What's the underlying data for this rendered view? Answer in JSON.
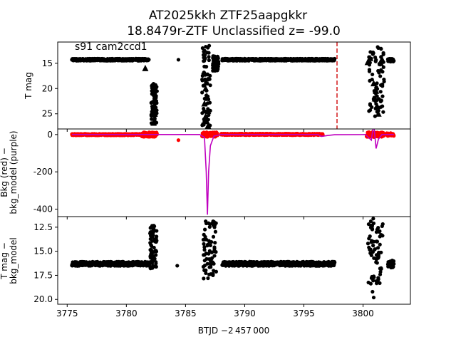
{
  "figure": {
    "title_line1": "AT2025kkh  ZTF25aapgkkr",
    "title_line2": "18.8479r-ZTF Unclassified z= -99.0",
    "xlabel": "BTJD −2 457 000",
    "x_ticks": [
      3775,
      3780,
      3785,
      3790,
      3795,
      3800
    ],
    "xlim": [
      3774.2,
      3804.0
    ]
  },
  "chart_data": [
    {
      "type": "scatter",
      "panel": "top",
      "ylabel": "T mag",
      "ylim": [
        28.0,
        10.8
      ],
      "inverted_y": true,
      "y_ticks": [
        15,
        20,
        25
      ],
      "annotation": "s91 cam2ccd1",
      "vline_x": 3797.8,
      "vline_color": "#d62728",
      "point_color": "#000000",
      "segments": [
        {
          "x_start": 3775.4,
          "x_end": 3781.9,
          "y_center": 14.3,
          "y_spread": 0.2
        },
        {
          "x_start": 3788.1,
          "x_end": 3797.6,
          "y_center": 14.3,
          "y_spread": 0.2
        },
        {
          "x_start": 3802.1,
          "x_end": 3802.6,
          "y_center": 14.4,
          "y_spread": 0.3
        }
      ],
      "clusters": [
        {
          "x_start": 3782.1,
          "x_end": 3782.6,
          "y_min": 19.0,
          "y_max": 27.0
        },
        {
          "x_start": 3786.4,
          "x_end": 3787.1,
          "y_min": 11.5,
          "y_max": 27.5
        },
        {
          "x_start": 3787.3,
          "x_end": 3787.8,
          "y_min": 13.5,
          "y_max": 16.5
        },
        {
          "x_start": 3800.5,
          "x_end": 3801.8,
          "y_min": 11.5,
          "y_max": 25.5
        }
      ],
      "triangles": [
        {
          "x": 3781.6,
          "y": 16.0
        },
        {
          "x": 3782.3,
          "y": 19.5
        },
        {
          "x": 3782.3,
          "y": 20.5
        },
        {
          "x": 3782.4,
          "y": 22.0
        },
        {
          "x": 3782.3,
          "y": 23.5
        },
        {
          "x": 3782.4,
          "y": 25.0
        },
        {
          "x": 3782.3,
          "y": 26.8
        },
        {
          "x": 3786.7,
          "y": 20.0
        },
        {
          "x": 3786.8,
          "y": 21.5
        },
        {
          "x": 3786.6,
          "y": 23.0
        },
        {
          "x": 3786.9,
          "y": 24.5
        },
        {
          "x": 3786.7,
          "y": 25.5
        },
        {
          "x": 3786.8,
          "y": 26.5
        },
        {
          "x": 3786.9,
          "y": 27.4
        },
        {
          "x": 3787.4,
          "y": 15.5
        },
        {
          "x": 3800.4,
          "y": 14.8
        },
        {
          "x": 3800.6,
          "y": 14.0
        },
        {
          "x": 3800.9,
          "y": 19.0
        },
        {
          "x": 3801.1,
          "y": 20.5
        },
        {
          "x": 3801.0,
          "y": 22.0
        },
        {
          "x": 3801.2,
          "y": 23.5
        },
        {
          "x": 3801.3,
          "y": 25.0
        },
        {
          "x": 3801.5,
          "y": 15.0
        },
        {
          "x": 3801.6,
          "y": 14.2
        }
      ],
      "singles": [
        {
          "x": 3784.4,
          "y": 14.3
        }
      ]
    },
    {
      "type": "line",
      "panel": "middle",
      "ylabel_line1": "Bkg (red) −",
      "ylabel_line2": "bkg_model (purple)",
      "ylim": [
        -440,
        30
      ],
      "y_ticks": [
        0,
        -200,
        -400
      ],
      "series": [
        {
          "role": "bkg",
          "color": "#ff0000",
          "marker": "dot"
        },
        {
          "role": "bkg_model",
          "color": "#bf00bf",
          "marker": "line"
        }
      ],
      "bkg_segments": [
        {
          "x_start": 3775.4,
          "x_end": 3781.2,
          "y_center": 0,
          "y_spread": 4
        },
        {
          "x_start": 3781.3,
          "x_end": 3782.6,
          "y_center": 0,
          "y_spread": 12
        },
        {
          "x_start": 3786.4,
          "x_end": 3787.7,
          "y_center": 0,
          "y_spread": 12
        },
        {
          "x_start": 3788.0,
          "x_end": 3796.6,
          "y_center": 1,
          "y_spread": 4
        },
        {
          "x_start": 3800.3,
          "x_end": 3801.8,
          "y_center": 0,
          "y_spread": 14
        },
        {
          "x_start": 3802.0,
          "x_end": 3802.6,
          "y_center": 0,
          "y_spread": 8
        }
      ],
      "bkg_singles": [
        {
          "x": 3784.4,
          "y": -30
        }
      ],
      "model_line": [
        [
          3775.4,
          0
        ],
        [
          3781.5,
          0
        ],
        [
          3782.6,
          0
        ],
        [
          3786.2,
          0
        ],
        [
          3786.6,
          -15
        ],
        [
          3786.75,
          -200
        ],
        [
          3786.85,
          -430
        ],
        [
          3786.95,
          -200
        ],
        [
          3787.1,
          -60
        ],
        [
          3787.4,
          -8
        ],
        [
          3788.0,
          0
        ],
        [
          3796.2,
          0
        ],
        [
          3796.5,
          -10
        ],
        [
          3797.0,
          -5
        ],
        [
          3797.6,
          -1
        ],
        [
          3800.2,
          0
        ],
        [
          3800.7,
          -30
        ],
        [
          3800.9,
          60
        ],
        [
          3801.1,
          -75
        ],
        [
          3801.3,
          -25
        ],
        [
          3801.6,
          0
        ],
        [
          3802.6,
          0
        ]
      ]
    },
    {
      "type": "scatter",
      "panel": "bottom",
      "ylabel_line1": "T mag −",
      "ylabel_line2": "bkg_model",
      "ylim": [
        20.5,
        11.4
      ],
      "inverted_y": true,
      "y_ticks": [
        12.5,
        15.0,
        17.5,
        20.0
      ],
      "point_color": "#000000",
      "segments": [
        {
          "x_start": 3775.4,
          "x_end": 3781.9,
          "y_center": 16.3,
          "y_spread": 0.22
        },
        {
          "x_start": 3788.1,
          "x_end": 3797.6,
          "y_center": 16.3,
          "y_spread": 0.22
        },
        {
          "x_start": 3802.1,
          "x_end": 3802.6,
          "y_center": 16.3,
          "y_spread": 0.4
        }
      ],
      "clusters": [
        {
          "x_start": 3782.0,
          "x_end": 3782.6,
          "y_min": 12.3,
          "y_max": 16.8
        },
        {
          "x_start": 3786.5,
          "x_end": 3787.6,
          "y_min": 11.6,
          "y_max": 17.9
        },
        {
          "x_start": 3800.4,
          "x_end": 3801.7,
          "y_min": 11.6,
          "y_max": 18.4
        }
      ],
      "singles": [
        {
          "x": 3784.3,
          "y": 16.5
        },
        {
          "x": 3786.9,
          "y": 17.8
        },
        {
          "x": 3800.8,
          "y": 19.2
        },
        {
          "x": 3800.9,
          "y": 19.8
        },
        {
          "x": 3801.3,
          "y": 17.9
        },
        {
          "x": 3801.2,
          "y": 18.2
        }
      ]
    }
  ]
}
